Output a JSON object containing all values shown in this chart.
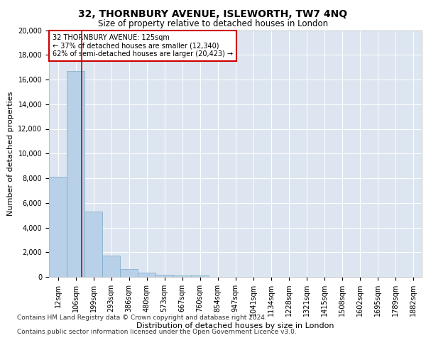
{
  "title1": "32, THORNBURY AVENUE, ISLEWORTH, TW7 4NQ",
  "title2": "Size of property relative to detached houses in London",
  "xlabel": "Distribution of detached houses by size in London",
  "ylabel": "Number of detached properties",
  "categories": [
    "12sqm",
    "106sqm",
    "199sqm",
    "293sqm",
    "386sqm",
    "480sqm",
    "573sqm",
    "667sqm",
    "760sqm",
    "854sqm",
    "947sqm",
    "1041sqm",
    "1134sqm",
    "1228sqm",
    "1321sqm",
    "1415sqm",
    "1508sqm",
    "1602sqm",
    "1695sqm",
    "1789sqm",
    "1882sqm"
  ],
  "bar_values": [
    8100,
    16700,
    5300,
    1750,
    650,
    320,
    200,
    140,
    110,
    0,
    0,
    0,
    0,
    0,
    0,
    0,
    0,
    0,
    0,
    0,
    0
  ],
  "bar_color": "#b8d0e8",
  "bar_edge_color": "#7aaac8",
  "vline_color": "#cc0000",
  "vline_x": 1.35,
  "annotation_text": "32 THORNBURY AVENUE: 125sqm\n← 37% of detached houses are smaller (12,340)\n62% of semi-detached houses are larger (20,423) →",
  "annotation_box_color": "#ffffff",
  "annotation_box_edge": "#cc0000",
  "ylim": [
    0,
    20000
  ],
  "yticks": [
    0,
    2000,
    4000,
    6000,
    8000,
    10000,
    12000,
    14000,
    16000,
    18000,
    20000
  ],
  "plot_bg": "#dde6f0",
  "footer1": "Contains HM Land Registry data © Crown copyright and database right 2024.",
  "footer2": "Contains public sector information licensed under the Open Government Licence v3.0.",
  "title1_fontsize": 10,
  "title2_fontsize": 8.5,
  "annotation_fontsize": 7,
  "axis_label_fontsize": 8,
  "tick_fontsize": 7,
  "footer_fontsize": 6.5
}
